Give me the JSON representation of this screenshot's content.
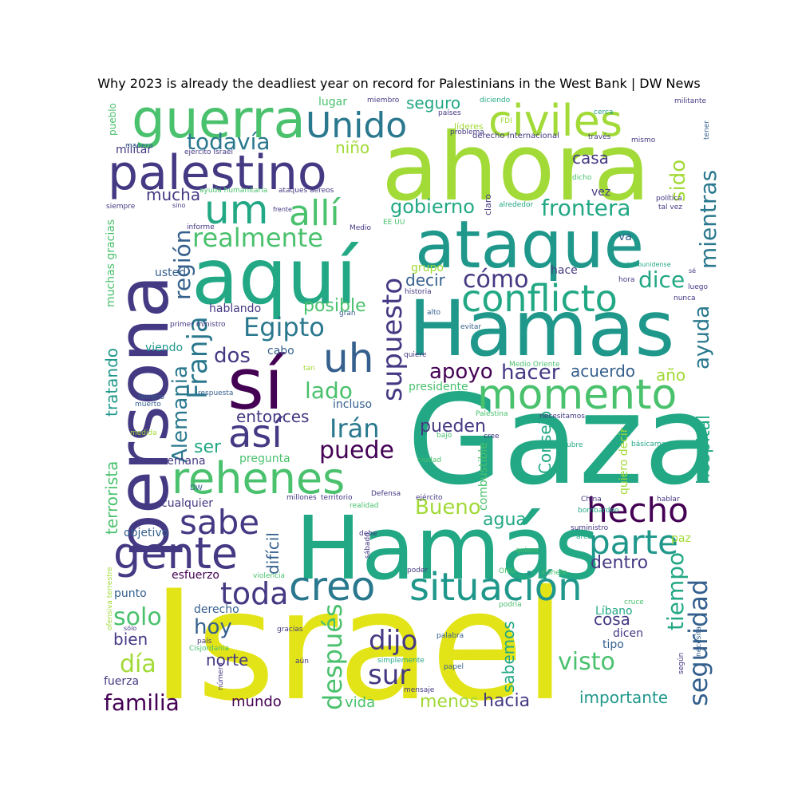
{
  "title": "Why 2023 is already the deadliest year on record for Palestinians in the West Bank | DW News",
  "palette": {
    "yellow": "#e3e418",
    "lime": "#a2da37",
    "green": "#4ac16d",
    "teal": "#22a884",
    "cyan": "#1f988b",
    "seablue": "#2a788e",
    "blue": "#35608d",
    "indigo": "#443983",
    "purple": "#440154"
  },
  "words": [
    {
      "text": "Israel",
      "color": "yellow"
    },
    {
      "text": "Gaza",
      "color": "teal"
    },
    {
      "text": "ahora",
      "color": "lime"
    },
    {
      "text": "Hamás",
      "color": "teal"
    },
    {
      "text": "persona",
      "color": "indigo"
    },
    {
      "text": "Hamas",
      "color": "cyan"
    },
    {
      "text": "ataque",
      "color": "cyan"
    },
    {
      "text": "aquí",
      "color": "teal"
    },
    {
      "text": "sí",
      "color": "purple"
    },
    {
      "text": "guerra",
      "color": "green"
    },
    {
      "text": "palestino",
      "color": "indigo"
    },
    {
      "text": "civiles",
      "color": "lime"
    },
    {
      "text": "creo",
      "color": "seablue"
    },
    {
      "text": "situación",
      "color": "cyan"
    },
    {
      "text": "momento",
      "color": "green"
    },
    {
      "text": "gente",
      "color": "indigo"
    },
    {
      "text": "rehenes",
      "color": "green"
    },
    {
      "text": "Unido",
      "color": "seablue"
    },
    {
      "text": "conflicto",
      "color": "teal"
    },
    {
      "text": "um",
      "color": "teal"
    },
    {
      "text": "allí",
      "color": "green"
    },
    {
      "text": "uh",
      "color": "blue"
    },
    {
      "text": "así",
      "color": "indigo"
    },
    {
      "text": "supuesto",
      "color": "indigo"
    },
    {
      "text": "hecho",
      "color": "purple"
    },
    {
      "text": "parte",
      "color": "cyan"
    },
    {
      "text": "sabe",
      "color": "indigo"
    },
    {
      "text": "Franja",
      "color": "seablue"
    },
    {
      "text": "toda",
      "color": "indigo"
    },
    {
      "text": "después",
      "color": "green"
    },
    {
      "text": "seguridad",
      "color": "blue"
    },
    {
      "text": "realmente",
      "color": "green"
    },
    {
      "text": "Egipto",
      "color": "seablue"
    },
    {
      "text": "todavía",
      "color": "seablue"
    },
    {
      "text": "dijo",
      "color": "indigo"
    },
    {
      "text": "sur",
      "color": "indigo"
    },
    {
      "text": "mientras",
      "color": "seablue"
    },
    {
      "text": "región",
      "color": "blue"
    },
    {
      "text": "frontera",
      "color": "teal"
    },
    {
      "text": "cómo",
      "color": "indigo"
    },
    {
      "text": "Irán",
      "color": "seablue"
    },
    {
      "text": "puede",
      "color": "purple"
    },
    {
      "text": "dice",
      "color": "teal"
    },
    {
      "text": "gobierno",
      "color": "teal"
    },
    {
      "text": "ayuda",
      "color": "seablue"
    },
    {
      "text": "hacer",
      "color": "indigo"
    },
    {
      "text": "apoyo",
      "color": "purple"
    },
    {
      "text": "lado",
      "color": "green"
    },
    {
      "text": "Alemania",
      "color": "seablue"
    },
    {
      "text": "solo",
      "color": "green"
    },
    {
      "text": "día",
      "color": "lime"
    },
    {
      "text": "hoy",
      "color": "blue"
    },
    {
      "text": "familia",
      "color": "purple"
    },
    {
      "text": "tiempo",
      "color": "teal"
    },
    {
      "text": "visto",
      "color": "green"
    },
    {
      "text": "Bueno",
      "color": "lime"
    },
    {
      "text": "dos",
      "color": "indigo"
    },
    {
      "text": "sido",
      "color": "lime"
    },
    {
      "text": "mucha",
      "color": "indigo"
    },
    {
      "text": "seguro",
      "color": "teal"
    },
    {
      "text": "niño",
      "color": "lime"
    },
    {
      "text": "casa",
      "color": "indigo"
    },
    {
      "text": "decir",
      "color": "blue"
    },
    {
      "text": "posible",
      "color": "green"
    },
    {
      "text": "acuerdo",
      "color": "blue"
    },
    {
      "text": "año",
      "color": "lime"
    },
    {
      "text": "dentro",
      "color": "indigo"
    },
    {
      "text": "entonces",
      "color": "indigo"
    },
    {
      "text": "pueden",
      "color": "indigo"
    },
    {
      "text": "Consejo",
      "color": "teal"
    },
    {
      "text": "agua",
      "color": "teal"
    },
    {
      "text": "hospital",
      "color": "teal"
    },
    {
      "text": "norte",
      "color": "indigo"
    },
    {
      "text": "bien",
      "color": "indigo"
    },
    {
      "text": "cosa",
      "color": "indigo"
    },
    {
      "text": "ser",
      "color": "teal"
    },
    {
      "text": "difícil",
      "color": "blue"
    },
    {
      "text": "sabemos",
      "color": "teal"
    },
    {
      "text": "hacia",
      "color": "indigo"
    },
    {
      "text": "menos",
      "color": "lime"
    },
    {
      "text": "importante",
      "color": "cyan"
    },
    {
      "text": "vida",
      "color": "green"
    },
    {
      "text": "mundo",
      "color": "purple"
    },
    {
      "text": "terrorista",
      "color": "green"
    },
    {
      "text": "tratando",
      "color": "cyan"
    },
    {
      "text": "hablando",
      "color": "indigo"
    },
    {
      "text": "viendo",
      "color": "cyan"
    },
    {
      "text": "muchas gracias",
      "color": "green"
    },
    {
      "text": "esfuerzo",
      "color": "purple"
    },
    {
      "text": "punto",
      "color": "blue"
    },
    {
      "text": "fuerza",
      "color": "indigo"
    },
    {
      "text": "cualquier",
      "color": "indigo"
    },
    {
      "text": "semana",
      "color": "indigo"
    },
    {
      "text": "objetivo",
      "color": "blue"
    },
    {
      "text": "usted",
      "color": "blue"
    },
    {
      "text": "militar",
      "color": "indigo"
    },
    {
      "text": "pregunta",
      "color": "green"
    },
    {
      "text": "presidente",
      "color": "green"
    },
    {
      "text": "incluso",
      "color": "blue"
    },
    {
      "text": "hace",
      "color": "indigo"
    },
    {
      "text": "vez",
      "color": "indigo"
    },
    {
      "text": "va",
      "color": "blue"
    },
    {
      "text": "derecho",
      "color": "blue"
    },
    {
      "text": "tipo",
      "color": "blue"
    },
    {
      "text": "combustible",
      "color": "green"
    },
    {
      "text": "quiero decir",
      "color": "lime"
    },
    {
      "text": "paz",
      "color": "lime"
    },
    {
      "text": "grupo",
      "color": "lime"
    },
    {
      "text": "lugar",
      "color": "green"
    },
    {
      "text": "cabo",
      "color": "blue"
    },
    {
      "text": "Líbano",
      "color": "teal"
    },
    {
      "text": "dicen",
      "color": "indigo"
    },
    {
      "text": "pueblo",
      "color": "green"
    },
    {
      "text": "FDI",
      "color": "lime"
    },
    {
      "text": "líderes",
      "color": "lime"
    },
    {
      "text": "derecho internacional",
      "color": "indigo"
    },
    {
      "text": "ejército Israel",
      "color": "indigo"
    },
    {
      "text": "ayuda humanitaria",
      "color": "green"
    },
    {
      "text": "ataques aéreos",
      "color": "indigo"
    },
    {
      "text": "claro",
      "color": "indigo"
    },
    {
      "text": "alrededor",
      "color": "teal"
    },
    {
      "text": "política",
      "color": "indigo"
    },
    {
      "text": "tal vez",
      "color": "indigo"
    },
    {
      "text": "siempre",
      "color": "indigo"
    },
    {
      "text": "sino",
      "color": "indigo"
    },
    {
      "text": "frente",
      "color": "indigo"
    },
    {
      "text": "informe",
      "color": "indigo"
    },
    {
      "text": "Medio",
      "color": "indigo"
    },
    {
      "text": "EE UU",
      "color": "green"
    },
    {
      "text": "historia",
      "color": "indigo"
    },
    {
      "text": "primer ministro",
      "color": "indigo"
    },
    {
      "text": "gran",
      "color": "blue"
    },
    {
      "text": "alto",
      "color": "blue"
    },
    {
      "text": "evitar",
      "color": "blue"
    },
    {
      "text": "estadounidense",
      "color": "teal"
    },
    {
      "text": "hora",
      "color": "indigo"
    },
    {
      "text": "luego",
      "color": "indigo"
    },
    {
      "text": "nunca",
      "color": "indigo"
    },
    {
      "text": "sé",
      "color": "indigo"
    },
    {
      "text": "miembro",
      "color": "indigo"
    },
    {
      "text": "países",
      "color": "indigo"
    },
    {
      "text": "diciendo",
      "color": "teal"
    },
    {
      "text": "cerca",
      "color": "cyan"
    },
    {
      "text": "militante",
      "color": "indigo"
    },
    {
      "text": "tener",
      "color": "blue"
    },
    {
      "text": "problema",
      "color": "indigo"
    },
    {
      "text": "través",
      "color": "indigo"
    },
    {
      "text": "mismo",
      "color": "indigo"
    },
    {
      "text": "manera",
      "color": "blue"
    },
    {
      "text": "dicho",
      "color": "green"
    },
    {
      "text": "Palestina",
      "color": "green"
    },
    {
      "text": "necesitamos",
      "color": "indigo"
    },
    {
      "text": "bajo",
      "color": "green"
    },
    {
      "text": "cree",
      "color": "indigo"
    },
    {
      "text": "ciudad",
      "color": "green"
    },
    {
      "text": "octubre",
      "color": "teal"
    },
    {
      "text": "básicamente",
      "color": "teal"
    },
    {
      "text": "hablar",
      "color": "indigo"
    },
    {
      "text": "Medio Oriente",
      "color": "green"
    },
    {
      "text": "quiere",
      "color": "indigo"
    },
    {
      "text": "tan",
      "color": "lime"
    },
    {
      "text": "terreno",
      "color": "blue"
    },
    {
      "text": "muerto",
      "color": "blue"
    },
    {
      "text": "respuesta",
      "color": "blue"
    },
    {
      "text": "medida",
      "color": "lime"
    },
    {
      "text": "DW",
      "color": "blue"
    },
    {
      "text": "millones",
      "color": "indigo"
    },
    {
      "text": "territorio",
      "color": "indigo"
    },
    {
      "text": "Defensa",
      "color": "indigo"
    },
    {
      "text": "ejército",
      "color": "indigo"
    },
    {
      "text": "realidad",
      "color": "green"
    },
    {
      "text": "China",
      "color": "indigo"
    },
    {
      "text": "bombardeo",
      "color": "teal"
    },
    {
      "text": "suministro",
      "color": "indigo"
    },
    {
      "text": "área",
      "color": "teal"
    },
    {
      "text": "quiero",
      "color": "green"
    },
    {
      "text": "debe",
      "color": "indigo"
    },
    {
      "text": "sábado",
      "color": "indigo"
    },
    {
      "text": "poder",
      "color": "indigo"
    },
    {
      "text": "ONU",
      "color": "green"
    },
    {
      "text": "cohete",
      "color": "green"
    },
    {
      "text": "violencia",
      "color": "green"
    },
    {
      "text": "ofensiva terrestre",
      "color": "lime"
    },
    {
      "text": "podría",
      "color": "green"
    },
    {
      "text": "cruce",
      "color": "green"
    },
    {
      "text": "necesita",
      "color": "blue"
    },
    {
      "text": "sólo",
      "color": "indigo"
    },
    {
      "text": "país",
      "color": "indigo"
    },
    {
      "text": "Cisjordania",
      "color": "green"
    },
    {
      "text": "gracias",
      "color": "indigo"
    },
    {
      "text": "palabra",
      "color": "blue"
    },
    {
      "text": "simplemente",
      "color": "teal"
    },
    {
      "text": "papel",
      "color": "blue"
    },
    {
      "text": "mensaje",
      "color": "indigo"
    },
    {
      "text": "según",
      "color": "indigo"
    },
    {
      "text": "aún",
      "color": "indigo"
    },
    {
      "text": "número",
      "color": "indigo"
    }
  ]
}
